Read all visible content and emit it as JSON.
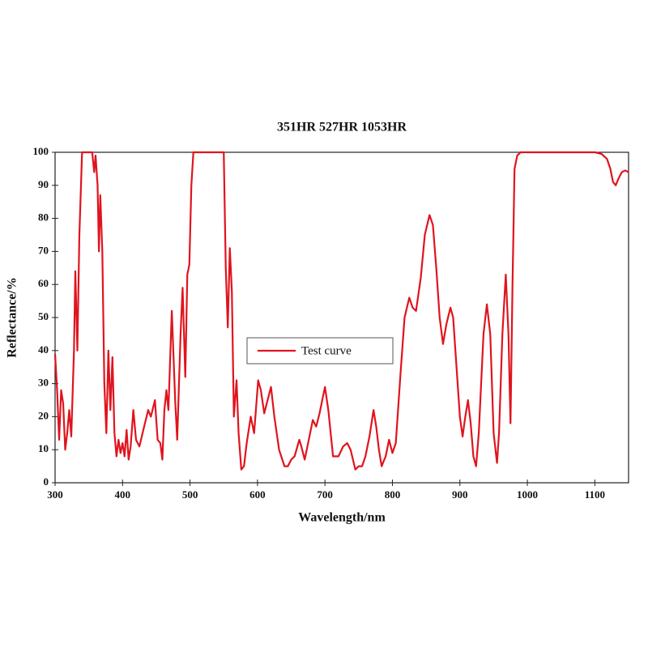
{
  "chart_data": {
    "type": "line",
    "title": "351HR 527HR 1053HR",
    "x_label": "Wavelength/nm",
    "y_label": "Reflectance/%",
    "xlim": [
      300,
      1150
    ],
    "xticks": [
      300,
      400,
      500,
      600,
      700,
      800,
      900,
      1000,
      1100
    ],
    "ylim": [
      0,
      100
    ],
    "yticks": [
      0,
      10,
      20,
      30,
      40,
      50,
      60,
      70,
      80,
      90,
      100
    ],
    "x": [
      300,
      303,
      306,
      309,
      312,
      315,
      318,
      321,
      324,
      328,
      330,
      333,
      336,
      340,
      345,
      355,
      358,
      360,
      363,
      365,
      367,
      370,
      373,
      376,
      379,
      382,
      385,
      388,
      391,
      394,
      397,
      400,
      403,
      406,
      409,
      412,
      416,
      420,
      425,
      432,
      438,
      442,
      448,
      452,
      456,
      459,
      462,
      465,
      468,
      473,
      478,
      481,
      486,
      489,
      493,
      496,
      499,
      502,
      505,
      520,
      545,
      550,
      553,
      556,
      559,
      562,
      565,
      569,
      572,
      576,
      580,
      584,
      590,
      595,
      601,
      605,
      610,
      615,
      620,
      625,
      632,
      640,
      645,
      650,
      655,
      662,
      665,
      670,
      675,
      682,
      687,
      692,
      700,
      705,
      712,
      720,
      727,
      733,
      738,
      745,
      750,
      755,
      760,
      766,
      772,
      776,
      780,
      784,
      790,
      795,
      800,
      805,
      812,
      818,
      825,
      830,
      835,
      842,
      848,
      855,
      860,
      865,
      870,
      875,
      880,
      886,
      890,
      895,
      900,
      904,
      908,
      912,
      916,
      920,
      924,
      928,
      935,
      940,
      945,
      950,
      955,
      958,
      963,
      968,
      972,
      975,
      978,
      981,
      985,
      990,
      1000,
      1050,
      1100,
      1110,
      1118,
      1123,
      1127,
      1131,
      1135,
      1140,
      1145,
      1150
    ],
    "series": [
      {
        "name": "Test curve",
        "color": "#e0141e",
        "values": [
          39,
          28,
          13,
          28,
          24,
          10,
          15,
          22,
          14,
          40,
          64,
          40,
          75,
          100,
          100,
          100,
          94,
          99,
          90,
          70,
          87,
          70,
          30,
          15,
          40,
          22,
          38,
          15,
          8,
          13,
          9,
          12,
          8,
          16,
          7,
          11,
          22,
          13,
          11,
          17,
          22,
          20,
          25,
          13,
          12,
          7,
          22,
          28,
          22,
          52,
          25,
          13,
          45,
          59,
          32,
          63,
          66,
          90,
          100,
          100,
          100,
          100,
          65,
          47,
          71,
          58,
          20,
          31,
          15,
          4,
          5,
          12,
          20,
          15,
          31,
          28,
          21,
          25,
          29,
          20,
          10,
          5,
          5,
          7,
          8,
          13,
          11,
          7,
          12,
          19,
          17,
          21,
          29,
          22,
          8,
          8,
          11,
          12,
          10,
          4,
          5,
          5,
          8,
          14,
          22,
          17,
          10,
          5,
          8,
          13,
          9,
          12,
          33,
          50,
          56,
          53,
          52,
          62,
          75,
          81,
          78,
          65,
          50,
          42,
          48,
          53,
          50,
          35,
          20,
          14,
          20,
          25,
          18,
          8,
          5,
          15,
          45,
          54,
          45,
          15,
          6,
          15,
          45,
          63,
          45,
          18,
          60,
          95,
          99,
          100,
          100,
          100,
          100,
          99.5,
          98,
          95,
          91,
          90,
          92,
          94,
          94.5,
          94
        ]
      }
    ],
    "grid": false,
    "legend": "center"
  }
}
